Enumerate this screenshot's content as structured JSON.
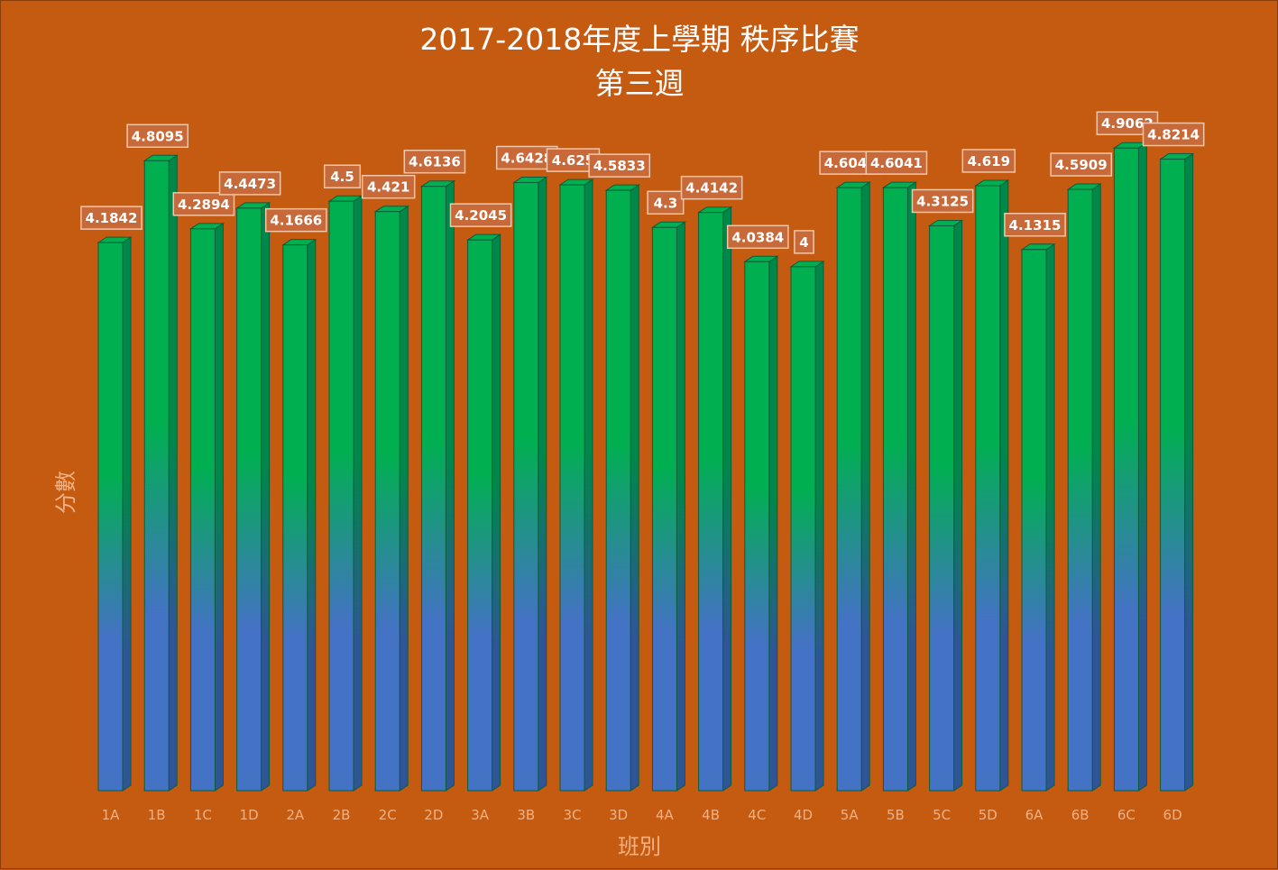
{
  "chart_data": {
    "type": "bar",
    "title": "2017-2018年度上學期 秩序比賽",
    "subtitle": "第三週",
    "xlabel": "班別",
    "ylabel": "分數",
    "categories": [
      "1A",
      "1B",
      "1C",
      "1D",
      "2A",
      "2B",
      "2C",
      "2D",
      "3A",
      "3B",
      "3C",
      "3D",
      "4A",
      "4B",
      "4C",
      "4D",
      "5A",
      "5B",
      "5C",
      "5D",
      "6A",
      "6B",
      "6C",
      "6D"
    ],
    "series": [
      {
        "values": [
          4.1842,
          4.8095,
          4.2894,
          4.4473,
          4.1666,
          4.5,
          4.421,
          4.6136,
          4.2045,
          4.6428,
          4.625,
          4.5833,
          4.3,
          4.4142,
          4.0384,
          4,
          4.6041,
          4.6041,
          4.3125,
          4.619,
          4.1315,
          4.5909,
          4.9062,
          4.8214
        ]
      }
    ],
    "ylim": [
      0,
      5.3
    ],
    "grid": false,
    "legend": "none",
    "data_labels": true,
    "colors": {
      "background": "#c55a11",
      "bar_top": "#00b050",
      "bar_bottom": "#4472c4",
      "bar_side": "#00874a",
      "bar_edge": "#0b5d3a",
      "label_fill": "#c8693a",
      "label_border": "#f2c6a8",
      "axis_text": "#f4b183",
      "title_text": "#ffffff"
    }
  }
}
